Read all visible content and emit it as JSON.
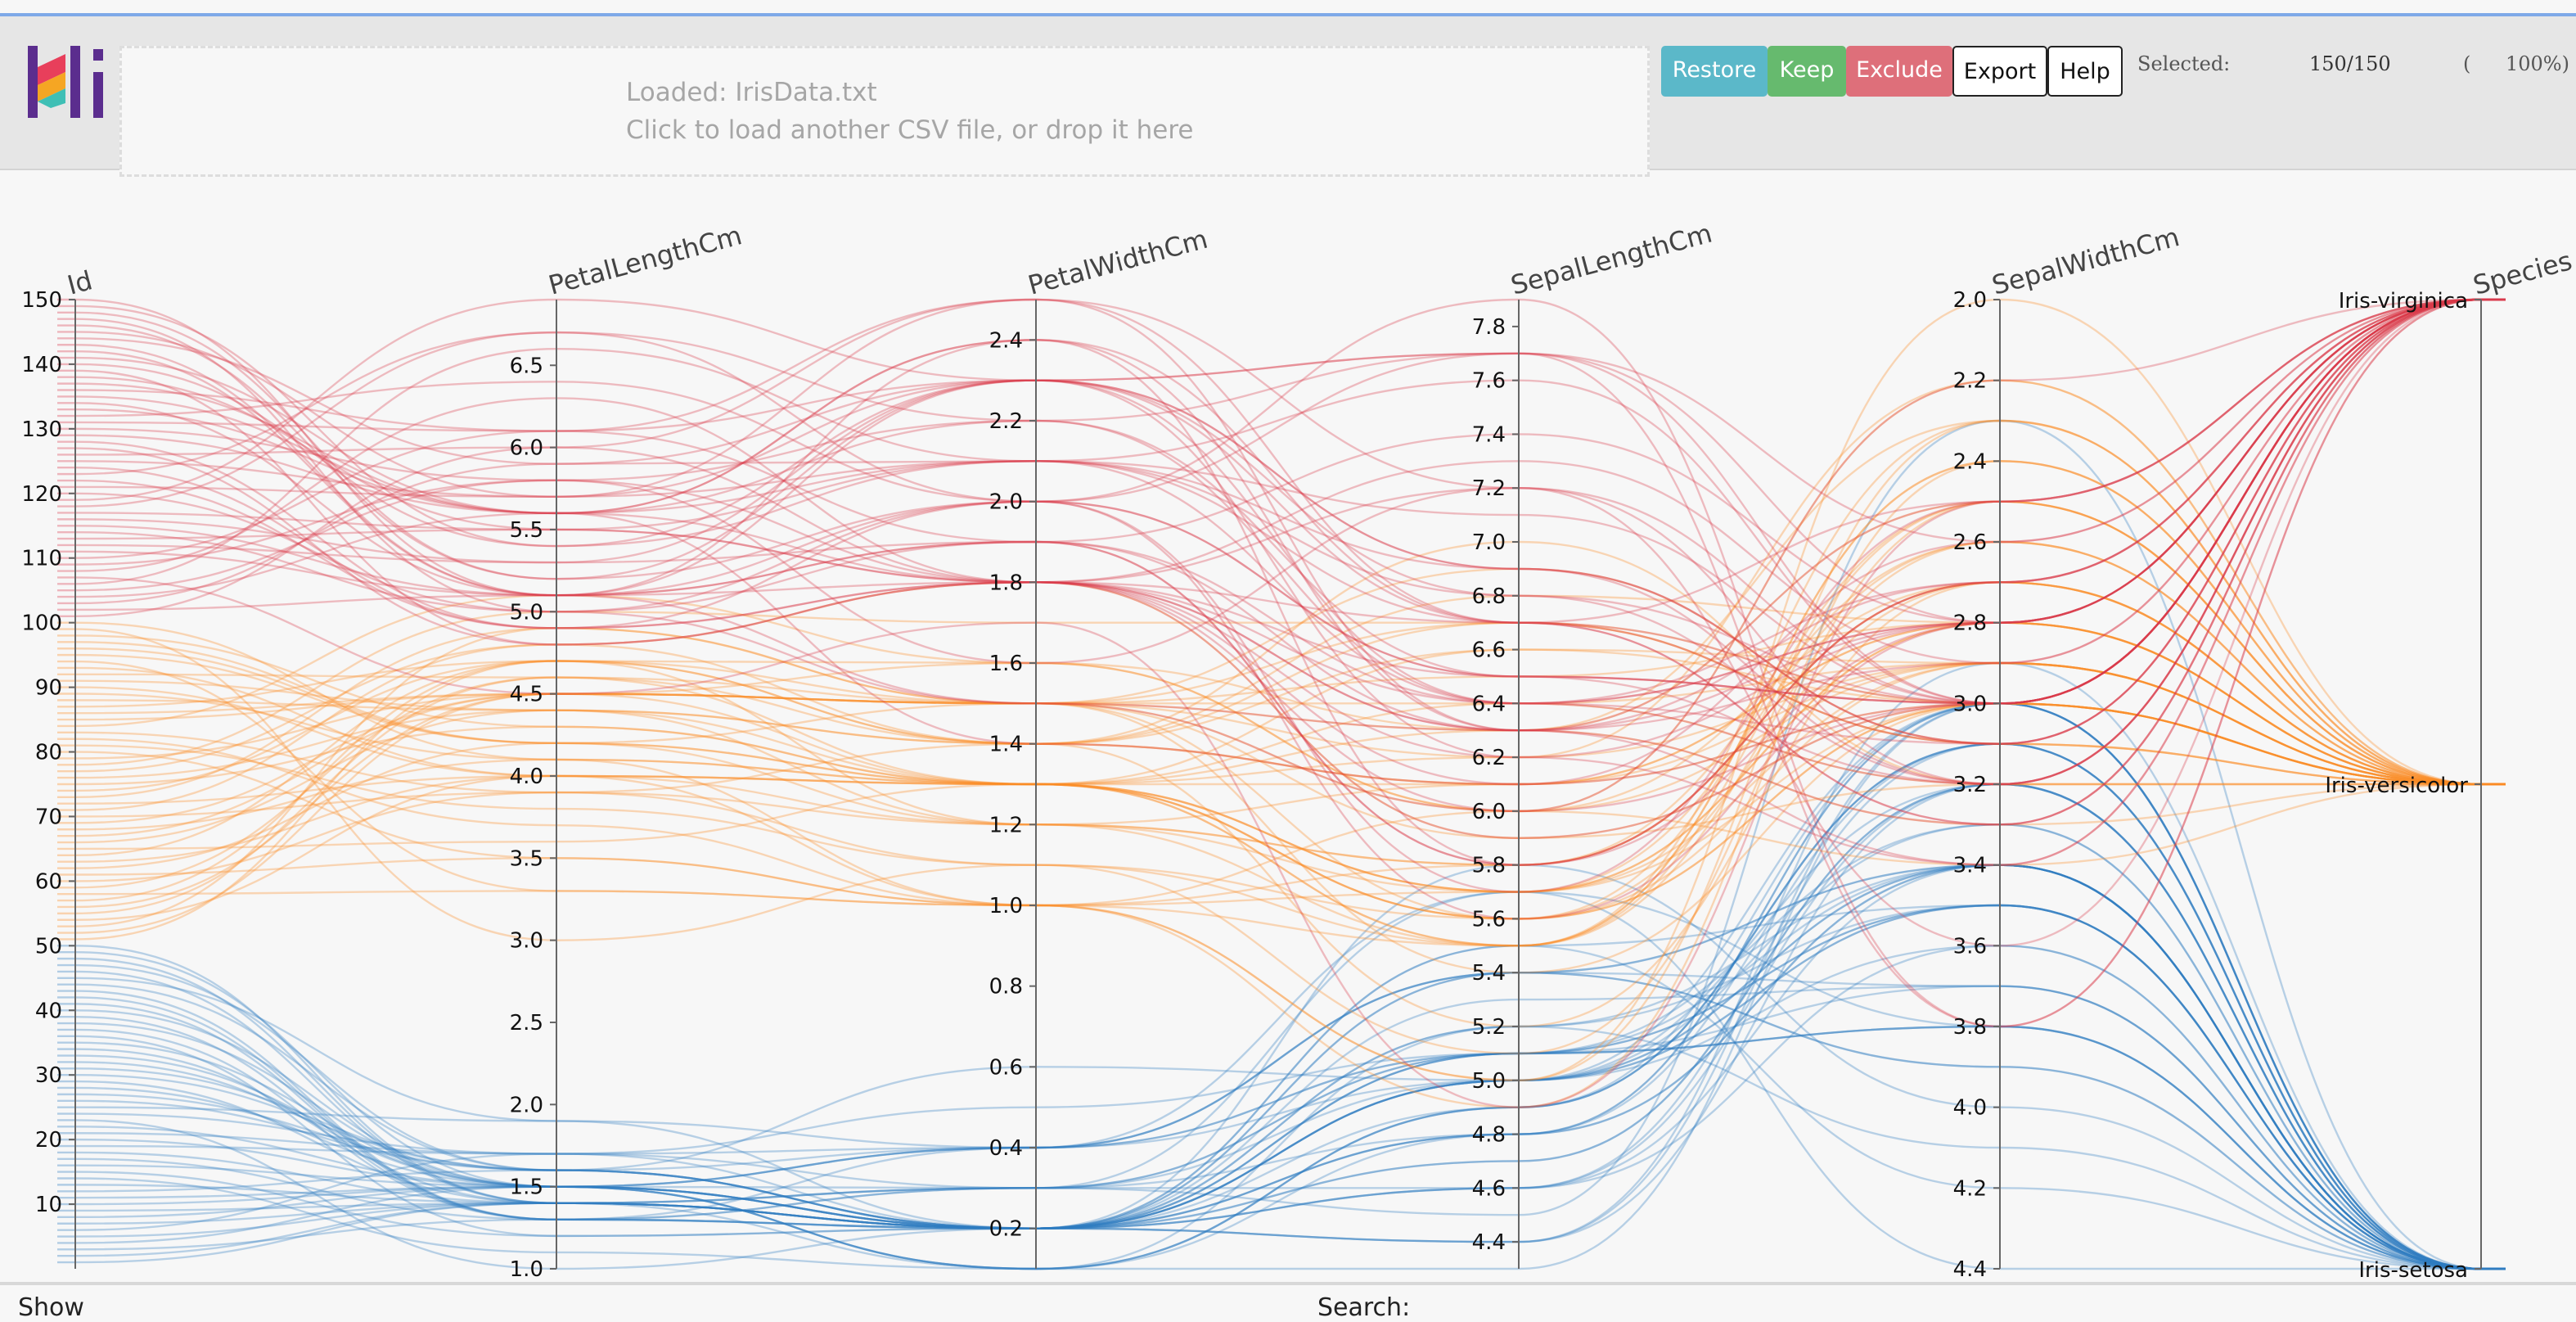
{
  "header": {
    "loaded_text": "Loaded: IrisData.txt",
    "drop_hint": "Click to load another CSV file, or drop it here",
    "buttons": {
      "restore": "Restore",
      "keep": "Keep",
      "exclude": "Exclude",
      "export": "Export",
      "help": "Help"
    },
    "selected_label": "Selected:",
    "selected_count": "150/150",
    "selected_pct_open": "(",
    "selected_pct": "100%)"
  },
  "footer": {
    "show_label": "Show",
    "search_label": "Search:"
  },
  "colors": {
    "setosa": "#2f7cc0",
    "versicolor": "#fb8b24",
    "virginica": "#d93a4c",
    "accent": "#7ea9e8"
  },
  "chart_data": {
    "type": "parallel-coordinates",
    "axes": [
      {
        "name": "Id",
        "range": [
          0,
          150
        ],
        "ticks": [
          "10",
          "20",
          "30",
          "40",
          "50",
          "60",
          "70",
          "80",
          "90",
          "100",
          "110",
          "120",
          "130",
          "140",
          "150"
        ]
      },
      {
        "name": "PetalLengthCm",
        "range": [
          1.0,
          6.9
        ],
        "ticks": [
          "1.0",
          "1.5",
          "2.0",
          "2.5",
          "3.0",
          "3.5",
          "4.0",
          "4.5",
          "5.0",
          "5.5",
          "6.0",
          "6.5"
        ]
      },
      {
        "name": "PetalWidthCm",
        "range": [
          0.1,
          2.5
        ],
        "ticks": [
          "0.2",
          "0.4",
          "0.6",
          "0.8",
          "1.0",
          "1.2",
          "1.4",
          "1.6",
          "1.8",
          "2.0",
          "2.2",
          "2.4"
        ]
      },
      {
        "name": "SepalLengthCm",
        "range": [
          4.3,
          7.9
        ],
        "ticks": [
          "4.4",
          "4.6",
          "4.8",
          "5.0",
          "5.2",
          "5.4",
          "5.6",
          "5.8",
          "6.0",
          "6.2",
          "6.4",
          "6.6",
          "6.8",
          "7.0",
          "7.2",
          "7.4",
          "7.6",
          "7.8"
        ]
      },
      {
        "name": "SepalWidthCm",
        "range": [
          4.4,
          2.0
        ],
        "inverted": true,
        "ticks": [
          "2.0",
          "2.2",
          "2.4",
          "2.6",
          "2.8",
          "3.0",
          "3.2",
          "3.4",
          "3.6",
          "3.8",
          "4.0",
          "4.2",
          "4.4"
        ]
      },
      {
        "name": "Species",
        "categories": [
          "Iris-setosa",
          "Iris-versicolor",
          "Iris-virginica"
        ]
      }
    ],
    "series_columns": [
      "Id",
      "PetalLengthCm",
      "PetalWidthCm",
      "SepalLengthCm",
      "SepalWidthCm",
      "Species"
    ],
    "records": [
      [
        1,
        1.4,
        0.2,
        5.1,
        3.5,
        0
      ],
      [
        2,
        1.4,
        0.2,
        4.9,
        3.0,
        0
      ],
      [
        3,
        1.3,
        0.2,
        4.7,
        3.2,
        0
      ],
      [
        4,
        1.5,
        0.2,
        4.6,
        3.1,
        0
      ],
      [
        5,
        1.4,
        0.2,
        5.0,
        3.6,
        0
      ],
      [
        6,
        1.7,
        0.4,
        5.4,
        3.9,
        0
      ],
      [
        7,
        1.4,
        0.3,
        4.6,
        3.4,
        0
      ],
      [
        8,
        1.5,
        0.2,
        5.0,
        3.4,
        0
      ],
      [
        9,
        1.4,
        0.2,
        4.4,
        2.9,
        0
      ],
      [
        10,
        1.5,
        0.1,
        4.9,
        3.1,
        0
      ],
      [
        11,
        1.5,
        0.2,
        5.4,
        3.7,
        0
      ],
      [
        12,
        1.6,
        0.2,
        4.8,
        3.4,
        0
      ],
      [
        13,
        1.4,
        0.1,
        4.8,
        3.0,
        0
      ],
      [
        14,
        1.1,
        0.1,
        4.3,
        3.0,
        0
      ],
      [
        15,
        1.2,
        0.2,
        5.8,
        4.0,
        0
      ],
      [
        16,
        1.5,
        0.4,
        5.7,
        4.4,
        0
      ],
      [
        17,
        1.3,
        0.4,
        5.4,
        3.9,
        0
      ],
      [
        18,
        1.4,
        0.3,
        5.1,
        3.5,
        0
      ],
      [
        19,
        1.7,
        0.3,
        5.7,
        3.8,
        0
      ],
      [
        20,
        1.5,
        0.3,
        5.1,
        3.8,
        0
      ],
      [
        21,
        1.7,
        0.2,
        5.4,
        3.4,
        0
      ],
      [
        22,
        1.5,
        0.4,
        5.1,
        3.7,
        0
      ],
      [
        23,
        1.0,
        0.2,
        4.6,
        3.6,
        0
      ],
      [
        24,
        1.7,
        0.5,
        5.1,
        3.3,
        0
      ],
      [
        25,
        1.9,
        0.2,
        4.8,
        3.4,
        0
      ],
      [
        26,
        1.6,
        0.2,
        5.0,
        3.0,
        0
      ],
      [
        27,
        1.6,
        0.4,
        5.0,
        3.4,
        0
      ],
      [
        28,
        1.5,
        0.2,
        5.2,
        3.5,
        0
      ],
      [
        29,
        1.4,
        0.2,
        5.2,
        3.4,
        0
      ],
      [
        30,
        1.6,
        0.2,
        4.7,
        3.2,
        0
      ],
      [
        31,
        1.6,
        0.2,
        4.8,
        3.1,
        0
      ],
      [
        32,
        1.5,
        0.4,
        5.4,
        3.4,
        0
      ],
      [
        33,
        1.5,
        0.1,
        5.2,
        4.1,
        0
      ],
      [
        34,
        1.4,
        0.2,
        5.5,
        4.2,
        0
      ],
      [
        35,
        1.5,
        0.1,
        4.9,
        3.1,
        0
      ],
      [
        36,
        1.2,
        0.2,
        5.0,
        3.2,
        0
      ],
      [
        37,
        1.3,
        0.2,
        5.5,
        3.5,
        0
      ],
      [
        38,
        1.5,
        0.1,
        4.9,
        3.1,
        0
      ],
      [
        39,
        1.3,
        0.2,
        4.4,
        3.0,
        0
      ],
      [
        40,
        1.5,
        0.2,
        5.1,
        3.4,
        0
      ],
      [
        41,
        1.3,
        0.3,
        5.0,
        3.5,
        0
      ],
      [
        42,
        1.3,
        0.3,
        4.5,
        2.3,
        0
      ],
      [
        43,
        1.3,
        0.2,
        4.4,
        3.2,
        0
      ],
      [
        44,
        1.6,
        0.6,
        5.0,
        3.5,
        0
      ],
      [
        45,
        1.9,
        0.4,
        5.1,
        3.8,
        0
      ],
      [
        46,
        1.4,
        0.3,
        4.8,
        3.0,
        0
      ],
      [
        47,
        1.6,
        0.2,
        5.1,
        3.8,
        0
      ],
      [
        48,
        1.4,
        0.2,
        4.6,
        3.2,
        0
      ],
      [
        49,
        1.5,
        0.2,
        5.3,
        3.7,
        0
      ],
      [
        50,
        1.4,
        0.2,
        5.0,
        3.3,
        0
      ],
      [
        51,
        4.7,
        1.4,
        7.0,
        3.2,
        1
      ],
      [
        52,
        4.5,
        1.5,
        6.4,
        3.2,
        1
      ],
      [
        53,
        4.9,
        1.5,
        6.9,
        3.1,
        1
      ],
      [
        54,
        4.0,
        1.3,
        5.5,
        2.3,
        1
      ],
      [
        55,
        4.6,
        1.5,
        6.5,
        2.8,
        1
      ],
      [
        56,
        4.5,
        1.3,
        5.7,
        2.8,
        1
      ],
      [
        57,
        4.7,
        1.6,
        6.3,
        3.3,
        1
      ],
      [
        58,
        3.3,
        1.0,
        4.9,
        2.4,
        1
      ],
      [
        59,
        4.6,
        1.3,
        6.6,
        2.9,
        1
      ],
      [
        60,
        3.9,
        1.4,
        5.2,
        2.7,
        1
      ],
      [
        61,
        3.5,
        1.0,
        5.0,
        2.0,
        1
      ],
      [
        62,
        4.2,
        1.5,
        5.9,
        3.0,
        1
      ],
      [
        63,
        4.0,
        1.0,
        6.0,
        2.2,
        1
      ],
      [
        64,
        4.7,
        1.4,
        6.1,
        2.9,
        1
      ],
      [
        65,
        3.6,
        1.3,
        5.6,
        2.9,
        1
      ],
      [
        66,
        4.4,
        1.4,
        6.7,
        3.1,
        1
      ],
      [
        67,
        4.5,
        1.5,
        5.6,
        3.0,
        1
      ],
      [
        68,
        4.1,
        1.0,
        5.8,
        2.7,
        1
      ],
      [
        69,
        4.5,
        1.5,
        6.2,
        2.2,
        1
      ],
      [
        70,
        3.9,
        1.1,
        5.6,
        2.5,
        1
      ],
      [
        71,
        4.8,
        1.8,
        5.9,
        3.2,
        1
      ],
      [
        72,
        4.0,
        1.3,
        6.1,
        2.8,
        1
      ],
      [
        73,
        4.9,
        1.5,
        6.3,
        2.5,
        1
      ],
      [
        74,
        4.7,
        1.2,
        6.1,
        2.8,
        1
      ],
      [
        75,
        4.3,
        1.3,
        6.4,
        2.9,
        1
      ],
      [
        76,
        4.4,
        1.4,
        6.6,
        3.0,
        1
      ],
      [
        77,
        4.8,
        1.4,
        6.8,
        2.8,
        1
      ],
      [
        78,
        5.0,
        1.7,
        6.7,
        3.0,
        1
      ],
      [
        79,
        4.5,
        1.5,
        6.0,
        2.9,
        1
      ],
      [
        80,
        3.5,
        1.0,
        5.7,
        2.6,
        1
      ],
      [
        81,
        3.8,
        1.1,
        5.5,
        2.4,
        1
      ],
      [
        82,
        3.7,
        1.0,
        5.5,
        2.4,
        1
      ],
      [
        83,
        3.9,
        1.2,
        5.8,
        2.7,
        1
      ],
      [
        84,
        5.1,
        1.6,
        6.0,
        2.7,
        1
      ],
      [
        85,
        4.5,
        1.5,
        5.4,
        3.0,
        1
      ],
      [
        86,
        4.5,
        1.6,
        6.0,
        3.4,
        1
      ],
      [
        87,
        4.7,
        1.5,
        6.7,
        3.1,
        1
      ],
      [
        88,
        4.4,
        1.3,
        6.3,
        2.3,
        1
      ],
      [
        89,
        4.1,
        1.3,
        5.6,
        3.0,
        1
      ],
      [
        90,
        4.0,
        1.3,
        5.5,
        2.5,
        1
      ],
      [
        91,
        4.4,
        1.2,
        5.5,
        2.6,
        1
      ],
      [
        92,
        4.6,
        1.4,
        6.1,
        3.0,
        1
      ],
      [
        93,
        4.0,
        1.2,
        5.8,
        2.6,
        1
      ],
      [
        94,
        3.3,
        1.0,
        5.0,
        2.3,
        1
      ],
      [
        95,
        4.2,
        1.3,
        5.6,
        2.7,
        1
      ],
      [
        96,
        4.2,
        1.2,
        5.7,
        3.0,
        1
      ],
      [
        97,
        4.2,
        1.3,
        5.7,
        2.9,
        1
      ],
      [
        98,
        4.3,
        1.3,
        6.2,
        2.9,
        1
      ],
      [
        99,
        3.0,
        1.1,
        5.1,
        2.5,
        1
      ],
      [
        100,
        4.1,
        1.3,
        5.7,
        2.8,
        1
      ],
      [
        101,
        6.0,
        2.5,
        6.3,
        3.3,
        2
      ],
      [
        102,
        5.1,
        1.9,
        5.8,
        2.7,
        2
      ],
      [
        103,
        5.9,
        2.1,
        7.1,
        3.0,
        2
      ],
      [
        104,
        5.6,
        1.8,
        6.3,
        2.9,
        2
      ],
      [
        105,
        5.8,
        2.2,
        6.5,
        3.0,
        2
      ],
      [
        106,
        6.6,
        2.1,
        7.6,
        3.0,
        2
      ],
      [
        107,
        4.5,
        1.7,
        4.9,
        2.5,
        2
      ],
      [
        108,
        6.3,
        1.8,
        7.3,
        2.9,
        2
      ],
      [
        109,
        5.8,
        1.8,
        6.7,
        2.5,
        2
      ],
      [
        110,
        6.1,
        2.5,
        7.2,
        3.6,
        2
      ],
      [
        111,
        5.1,
        2.0,
        6.5,
        3.2,
        2
      ],
      [
        112,
        5.3,
        1.9,
        6.4,
        2.7,
        2
      ],
      [
        113,
        5.5,
        2.1,
        6.8,
        3.0,
        2
      ],
      [
        114,
        5.0,
        2.0,
        5.7,
        2.5,
        2
      ],
      [
        115,
        5.1,
        2.4,
        5.8,
        2.8,
        2
      ],
      [
        116,
        5.3,
        2.3,
        6.4,
        3.2,
        2
      ],
      [
        117,
        5.5,
        1.8,
        6.5,
        3.0,
        2
      ],
      [
        118,
        6.7,
        2.2,
        7.7,
        3.8,
        2
      ],
      [
        119,
        6.9,
        2.3,
        7.7,
        2.6,
        2
      ],
      [
        120,
        5.0,
        1.5,
        6.0,
        2.2,
        2
      ],
      [
        121,
        5.7,
        2.3,
        6.9,
        3.2,
        2
      ],
      [
        122,
        4.9,
        2.0,
        5.6,
        2.8,
        2
      ],
      [
        123,
        6.7,
        2.0,
        7.7,
        2.8,
        2
      ],
      [
        124,
        4.9,
        1.8,
        6.3,
        2.7,
        2
      ],
      [
        125,
        5.7,
        2.1,
        6.7,
        3.3,
        2
      ],
      [
        126,
        6.0,
        1.8,
        7.2,
        3.2,
        2
      ],
      [
        127,
        4.8,
        1.8,
        6.2,
        2.8,
        2
      ],
      [
        128,
        4.9,
        1.8,
        6.1,
        3.0,
        2
      ],
      [
        129,
        5.6,
        2.1,
        6.4,
        2.8,
        2
      ],
      [
        130,
        5.8,
        1.6,
        7.2,
        3.0,
        2
      ],
      [
        131,
        6.1,
        1.9,
        7.4,
        2.8,
        2
      ],
      [
        132,
        6.4,
        2.0,
        7.9,
        3.8,
        2
      ],
      [
        133,
        5.6,
        2.2,
        6.4,
        2.8,
        2
      ],
      [
        134,
        5.1,
        1.5,
        6.3,
        2.8,
        2
      ],
      [
        135,
        5.6,
        1.4,
        6.1,
        2.6,
        2
      ],
      [
        136,
        6.1,
        2.3,
        7.7,
        3.0,
        2
      ],
      [
        137,
        5.6,
        2.4,
        6.3,
        3.4,
        2
      ],
      [
        138,
        5.5,
        1.8,
        6.4,
        3.1,
        2
      ],
      [
        139,
        4.8,
        1.8,
        6.0,
        3.0,
        2
      ],
      [
        140,
        5.4,
        2.1,
        6.9,
        3.1,
        2
      ],
      [
        141,
        5.6,
        2.4,
        6.7,
        3.1,
        2
      ],
      [
        142,
        5.1,
        2.3,
        6.9,
        3.1,
        2
      ],
      [
        143,
        5.1,
        1.9,
        5.8,
        2.7,
        2
      ],
      [
        144,
        5.9,
        2.3,
        6.8,
        3.2,
        2
      ],
      [
        145,
        5.7,
        2.5,
        6.7,
        3.3,
        2
      ],
      [
        146,
        5.2,
        2.3,
        6.7,
        3.0,
        2
      ],
      [
        147,
        5.0,
        1.9,
        6.3,
        2.5,
        2
      ],
      [
        148,
        5.2,
        2.0,
        6.5,
        3.0,
        2
      ],
      [
        149,
        5.4,
        2.3,
        6.2,
        3.4,
        2
      ],
      [
        150,
        5.1,
        1.8,
        5.9,
        3.0,
        2
      ]
    ],
    "grid": false,
    "legend": "none"
  }
}
